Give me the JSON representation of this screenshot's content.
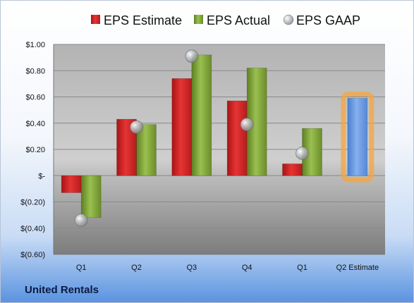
{
  "chart_data": {
    "type": "bar",
    "categories": [
      "Q1",
      "Q2",
      "Q3",
      "Q4",
      "Q1",
      "Q2 Estimate"
    ],
    "series": [
      {
        "name": "EPS Estimate",
        "values": [
          -0.13,
          0.43,
          0.74,
          0.57,
          0.09,
          null
        ],
        "color": "#d42a2a"
      },
      {
        "name": "EPS Actual",
        "values": [
          -0.32,
          0.39,
          0.92,
          0.82,
          0.36,
          null
        ],
        "color": "#7fa33a"
      },
      {
        "name": "EPS GAAP",
        "values": [
          -0.34,
          0.37,
          0.91,
          0.39,
          0.17,
          null
        ],
        "color": "#a9acb0"
      }
    ],
    "estimate": {
      "category": "Q2 Estimate",
      "value": 0.59,
      "color": "#6a9be0",
      "glow": "#f5a540"
    },
    "ylim": [
      -0.6,
      1.0
    ],
    "yticks": [
      1.0,
      0.8,
      0.6,
      0.4,
      0.2,
      0,
      -0.2,
      -0.4,
      -0.6
    ],
    "ytick_labels": [
      "$1.00",
      "$0.80",
      "$0.60",
      "$0.40",
      "$0.20",
      "$-",
      "$(0.20)",
      "$(0.40)",
      "$(0.60)"
    ],
    "legend_position": "top",
    "grid": true
  },
  "company": "United Rentals"
}
